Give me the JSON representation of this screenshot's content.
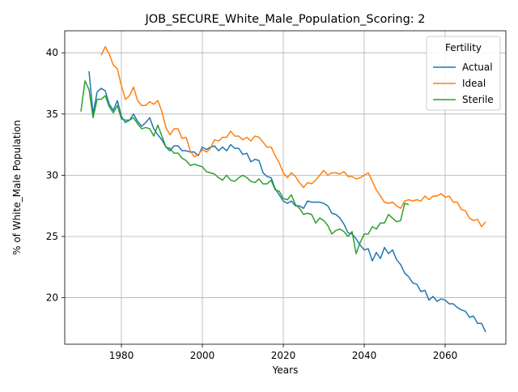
{
  "chart_data": {
    "type": "line",
    "title": "JOB_SECURE_White_Male_Population_Scoring: 2",
    "xlabel": "Years",
    "ylabel": "% of White_Male Population",
    "xlim": [
      1966,
      2075
    ],
    "ylim": [
      16.2,
      41.8
    ],
    "x_ticks": [
      1980,
      2000,
      2020,
      2040,
      2060
    ],
    "y_ticks": [
      20,
      25,
      30,
      35,
      40
    ],
    "grid": true,
    "legend": {
      "title": "Fertility",
      "placement": "top-right"
    },
    "series": [
      {
        "name": "Actual",
        "color": "#1f77b4",
        "points": [
          [
            1972,
            38.5
          ],
          [
            1973,
            35.0
          ],
          [
            1974,
            36.8
          ],
          [
            1975,
            37.1
          ],
          [
            1976,
            36.9
          ],
          [
            1977,
            35.8
          ],
          [
            1978,
            35.3
          ],
          [
            1979,
            36.1
          ],
          [
            1980,
            34.8
          ],
          [
            1981,
            34.3
          ],
          [
            1982,
            34.5
          ],
          [
            1983,
            35.0
          ],
          [
            1984,
            34.4
          ],
          [
            1985,
            34.0
          ],
          [
            1986,
            34.3
          ],
          [
            1987,
            34.7
          ],
          [
            1988,
            33.8
          ],
          [
            1989,
            33.3
          ],
          [
            1990,
            32.9
          ],
          [
            1991,
            32.3
          ],
          [
            1992,
            32.0
          ],
          [
            1993,
            32.4
          ],
          [
            1994,
            32.4
          ],
          [
            1995,
            32.0
          ],
          [
            1996,
            32.0
          ],
          [
            1997,
            31.9
          ],
          [
            1998,
            31.9
          ],
          [
            1999,
            31.6
          ],
          [
            2000,
            32.3
          ],
          [
            2001,
            32.1
          ],
          [
            2002,
            32.3
          ],
          [
            2003,
            32.4
          ],
          [
            2004,
            32.0
          ],
          [
            2005,
            32.3
          ],
          [
            2006,
            32.0
          ],
          [
            2007,
            32.5
          ],
          [
            2008,
            32.2
          ],
          [
            2009,
            32.2
          ],
          [
            2010,
            31.7
          ],
          [
            2011,
            31.8
          ],
          [
            2012,
            31.1
          ],
          [
            2013,
            31.3
          ],
          [
            2014,
            31.2
          ],
          [
            2015,
            30.2
          ],
          [
            2016,
            29.9
          ],
          [
            2017,
            29.8
          ],
          [
            2018,
            28.9
          ],
          [
            2019,
            28.4
          ],
          [
            2020,
            27.9
          ],
          [
            2021,
            27.7
          ],
          [
            2022,
            27.9
          ],
          [
            2023,
            27.5
          ],
          [
            2024,
            27.5
          ],
          [
            2025,
            27.3
          ],
          [
            2026,
            27.9
          ],
          [
            2027,
            27.8
          ],
          [
            2028,
            27.8
          ],
          [
            2029,
            27.8
          ],
          [
            2030,
            27.7
          ],
          [
            2031,
            27.5
          ],
          [
            2032,
            26.9
          ],
          [
            2033,
            26.8
          ],
          [
            2034,
            26.5
          ],
          [
            2035,
            26.0
          ],
          [
            2036,
            25.3
          ],
          [
            2037,
            25.2
          ],
          [
            2038,
            24.8
          ],
          [
            2039,
            24.3
          ],
          [
            2040,
            23.9
          ],
          [
            2041,
            24.0
          ],
          [
            2042,
            23.0
          ],
          [
            2043,
            23.7
          ],
          [
            2044,
            23.2
          ],
          [
            2045,
            24.1
          ],
          [
            2046,
            23.6
          ],
          [
            2047,
            23.9
          ],
          [
            2048,
            23.1
          ],
          [
            2049,
            22.7
          ],
          [
            2050,
            22.0
          ],
          [
            2051,
            21.7
          ],
          [
            2052,
            21.2
          ],
          [
            2053,
            21.1
          ],
          [
            2054,
            20.5
          ],
          [
            2055,
            20.6
          ],
          [
            2056,
            19.8
          ],
          [
            2057,
            20.1
          ],
          [
            2058,
            19.7
          ],
          [
            2059,
            19.9
          ],
          [
            2060,
            19.8
          ],
          [
            2061,
            19.5
          ],
          [
            2062,
            19.5
          ],
          [
            2063,
            19.2
          ],
          [
            2064,
            19.0
          ],
          [
            2065,
            18.9
          ],
          [
            2066,
            18.4
          ],
          [
            2067,
            18.5
          ],
          [
            2068,
            17.9
          ],
          [
            2069,
            17.9
          ],
          [
            2070,
            17.2
          ]
        ]
      },
      {
        "name": "Ideal",
        "color": "#ff7f0e",
        "points": [
          [
            1975,
            39.8
          ],
          [
            1976,
            40.5
          ],
          [
            1977,
            39.9
          ],
          [
            1978,
            39.0
          ],
          [
            1979,
            38.7
          ],
          [
            1980,
            37.3
          ],
          [
            1981,
            36.2
          ],
          [
            1982,
            36.5
          ],
          [
            1983,
            37.2
          ],
          [
            1984,
            36.1
          ],
          [
            1985,
            35.7
          ],
          [
            1986,
            35.7
          ],
          [
            1987,
            36.0
          ],
          [
            1988,
            35.8
          ],
          [
            1989,
            36.1
          ],
          [
            1990,
            35.2
          ],
          [
            1991,
            33.9
          ],
          [
            1992,
            33.3
          ],
          [
            1993,
            33.8
          ],
          [
            1994,
            33.8
          ],
          [
            1995,
            33.0
          ],
          [
            1996,
            33.1
          ],
          [
            1997,
            32.0
          ],
          [
            1998,
            31.5
          ],
          [
            1999,
            31.7
          ],
          [
            2000,
            32.1
          ],
          [
            2001,
            31.9
          ],
          [
            2002,
            32.2
          ],
          [
            2003,
            32.9
          ],
          [
            2004,
            32.8
          ],
          [
            2005,
            33.1
          ],
          [
            2006,
            33.1
          ],
          [
            2007,
            33.6
          ],
          [
            2008,
            33.2
          ],
          [
            2009,
            33.2
          ],
          [
            2010,
            32.9
          ],
          [
            2011,
            33.1
          ],
          [
            2012,
            32.8
          ],
          [
            2013,
            33.2
          ],
          [
            2014,
            33.1
          ],
          [
            2015,
            32.7
          ],
          [
            2016,
            32.3
          ],
          [
            2017,
            32.3
          ],
          [
            2018,
            31.6
          ],
          [
            2019,
            31.0
          ],
          [
            2020,
            30.2
          ],
          [
            2021,
            29.8
          ],
          [
            2022,
            30.2
          ],
          [
            2023,
            29.9
          ],
          [
            2024,
            29.4
          ],
          [
            2025,
            29.0
          ],
          [
            2026,
            29.4
          ],
          [
            2027,
            29.3
          ],
          [
            2028,
            29.6
          ],
          [
            2029,
            30.0
          ],
          [
            2030,
            30.4
          ],
          [
            2031,
            30.0
          ],
          [
            2032,
            30.2
          ],
          [
            2033,
            30.2
          ],
          [
            2034,
            30.1
          ],
          [
            2035,
            30.3
          ],
          [
            2036,
            29.9
          ],
          [
            2037,
            29.9
          ],
          [
            2038,
            29.7
          ],
          [
            2039,
            29.8
          ],
          [
            2040,
            30.0
          ],
          [
            2041,
            30.2
          ],
          [
            2042,
            29.5
          ],
          [
            2043,
            28.8
          ],
          [
            2044,
            28.3
          ],
          [
            2045,
            27.8
          ],
          [
            2046,
            27.7
          ],
          [
            2047,
            27.8
          ],
          [
            2048,
            27.5
          ],
          [
            2049,
            27.3
          ],
          [
            2050,
            27.9
          ],
          [
            2051,
            28.0
          ],
          [
            2052,
            27.9
          ],
          [
            2053,
            28.0
          ],
          [
            2054,
            27.9
          ],
          [
            2055,
            28.3
          ],
          [
            2056,
            28.0
          ],
          [
            2057,
            28.3
          ],
          [
            2058,
            28.3
          ],
          [
            2059,
            28.5
          ],
          [
            2060,
            28.2
          ],
          [
            2061,
            28.3
          ],
          [
            2062,
            27.8
          ],
          [
            2063,
            27.8
          ],
          [
            2064,
            27.2
          ],
          [
            2065,
            27.1
          ],
          [
            2066,
            26.5
          ],
          [
            2067,
            26.3
          ],
          [
            2068,
            26.4
          ],
          [
            2069,
            25.8
          ],
          [
            2070,
            26.2
          ]
        ]
      },
      {
        "name": "Sterile",
        "color": "#2ca02c",
        "points": [
          [
            1970,
            35.2
          ],
          [
            1971,
            37.7
          ],
          [
            1972,
            37.0
          ],
          [
            1973,
            34.7
          ],
          [
            1974,
            36.2
          ],
          [
            1975,
            36.2
          ],
          [
            1976,
            36.5
          ],
          [
            1977,
            35.6
          ],
          [
            1978,
            35.1
          ],
          [
            1979,
            35.7
          ],
          [
            1980,
            34.6
          ],
          [
            1981,
            34.5
          ],
          [
            1982,
            34.5
          ],
          [
            1983,
            34.7
          ],
          [
            1984,
            34.2
          ],
          [
            1985,
            33.8
          ],
          [
            1986,
            33.9
          ],
          [
            1987,
            33.8
          ],
          [
            1988,
            33.2
          ],
          [
            1989,
            34.1
          ],
          [
            1990,
            33.2
          ],
          [
            1991,
            32.3
          ],
          [
            1992,
            32.2
          ],
          [
            1993,
            31.8
          ],
          [
            1994,
            31.8
          ],
          [
            1995,
            31.4
          ],
          [
            1996,
            31.2
          ],
          [
            1997,
            30.8
          ],
          [
            1998,
            30.9
          ],
          [
            1999,
            30.8
          ],
          [
            2000,
            30.7
          ],
          [
            2001,
            30.3
          ],
          [
            2002,
            30.2
          ],
          [
            2003,
            30.1
          ],
          [
            2004,
            29.8
          ],
          [
            2005,
            29.6
          ],
          [
            2006,
            30.0
          ],
          [
            2007,
            29.6
          ],
          [
            2008,
            29.5
          ],
          [
            2009,
            29.8
          ],
          [
            2010,
            30.0
          ],
          [
            2011,
            29.8
          ],
          [
            2012,
            29.5
          ],
          [
            2013,
            29.4
          ],
          [
            2014,
            29.7
          ],
          [
            2015,
            29.3
          ],
          [
            2016,
            29.3
          ],
          [
            2017,
            29.6
          ],
          [
            2018,
            28.8
          ],
          [
            2019,
            28.7
          ],
          [
            2020,
            28.1
          ],
          [
            2021,
            28.0
          ],
          [
            2022,
            28.4
          ],
          [
            2023,
            27.6
          ],
          [
            2024,
            27.3
          ],
          [
            2025,
            26.8
          ],
          [
            2026,
            26.9
          ],
          [
            2027,
            26.8
          ],
          [
            2028,
            26.1
          ],
          [
            2029,
            26.5
          ],
          [
            2030,
            26.3
          ],
          [
            2031,
            25.9
          ],
          [
            2032,
            25.2
          ],
          [
            2033,
            25.5
          ],
          [
            2034,
            25.6
          ],
          [
            2035,
            25.4
          ],
          [
            2036,
            25.0
          ],
          [
            2037,
            25.4
          ],
          [
            2038,
            23.6
          ],
          [
            2039,
            24.5
          ],
          [
            2040,
            25.2
          ],
          [
            2041,
            25.2
          ],
          [
            2042,
            25.8
          ],
          [
            2043,
            25.6
          ],
          [
            2044,
            26.1
          ],
          [
            2045,
            26.1
          ],
          [
            2046,
            26.8
          ],
          [
            2047,
            26.5
          ],
          [
            2048,
            26.2
          ],
          [
            2049,
            26.3
          ],
          [
            2050,
            27.7
          ],
          [
            2051,
            27.6
          ]
        ]
      }
    ]
  }
}
